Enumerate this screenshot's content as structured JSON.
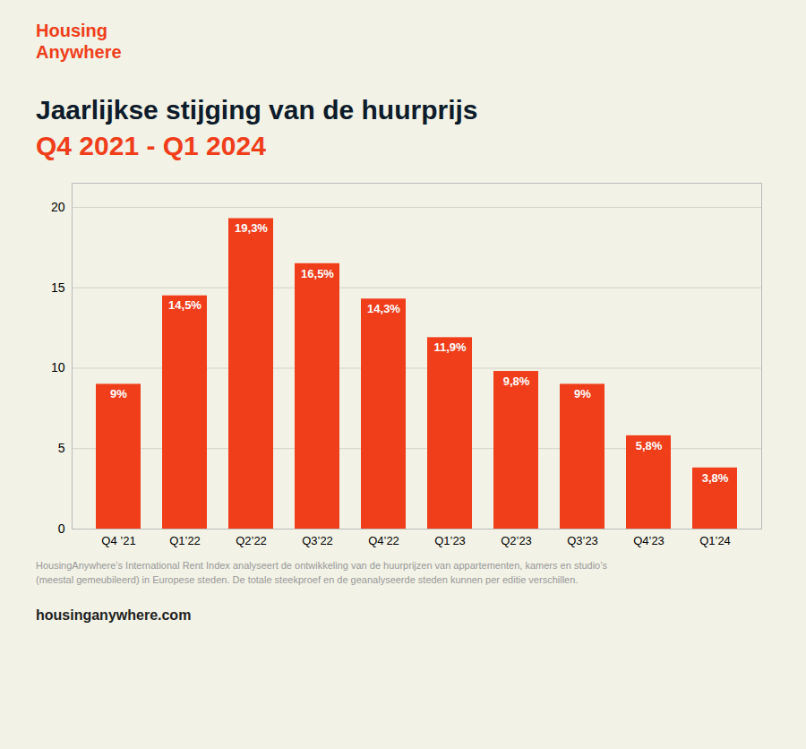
{
  "chart_data": {
    "type": "bar",
    "title": "Jaarlijkse stijging van de huurprijs",
    "subtitle": "Q4 2021 - Q1 2024",
    "categories": [
      "Q4 ’21",
      "Q1’22",
      "Q2’22",
      "Q3’22",
      "Q4’22",
      "Q1’23",
      "Q2’23",
      "Q3’23",
      "Q4’23",
      "Q1’24"
    ],
    "values": [
      9.0,
      14.5,
      19.3,
      16.5,
      14.3,
      11.9,
      9.8,
      9.0,
      5.8,
      3.8
    ],
    "value_labels": [
      "9%",
      "14,5%",
      "19,3%",
      "16,5%",
      "14,3%",
      "11,9%",
      "9,8%",
      "9%",
      "5,8%",
      "3,8%"
    ],
    "data_labels": true,
    "color": "#f03e1b",
    "ylim": [
      0,
      21.5
    ],
    "yticks": [
      0,
      5,
      10,
      15,
      20
    ],
    "grid": true,
    "annotations": [
      "Housing\nAnywhere",
      "HousingAnywhere’s International Rent Index analyseert de ontwikkeling van de huurprijzen van appartementen, kamers en studio’s",
      "(meestal gemeubileerd) in Europese steden. De totale steekproef en de geanalyseerde steden kunnen per editie verschillen.",
      "housinganywhere.com"
    ]
  }
}
